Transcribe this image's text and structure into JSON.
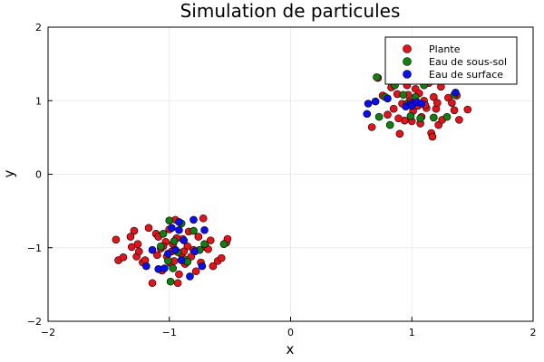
{
  "chart_data": {
    "type": "scatter",
    "title": "Simulation de particules",
    "xlabel": "x",
    "ylabel": "y",
    "xlim": [
      -2,
      2
    ],
    "ylim": [
      -2,
      2
    ],
    "xticks": [
      -2,
      -1,
      0,
      1,
      2
    ],
    "yticks": [
      -2,
      -1,
      0,
      1,
      2
    ],
    "grid": true,
    "legend_position": "top-right",
    "series": [
      {
        "name": "Plante",
        "color": "#e8111a",
        "points": [
          [
            -1.44,
            -0.89
          ],
          [
            -1.42,
            -1.17
          ],
          [
            -1.38,
            -1.13
          ],
          [
            -1.32,
            -0.85
          ],
          [
            -1.31,
            -0.99
          ],
          [
            -1.29,
            -0.77
          ],
          [
            -1.27,
            -1.12
          ],
          [
            -1.26,
            -0.95
          ],
          [
            -1.22,
            -1.2
          ],
          [
            -1.2,
            -1.17
          ],
          [
            -1.17,
            -0.73
          ],
          [
            -1.14,
            -1.48
          ],
          [
            -1.11,
            -0.81
          ],
          [
            -1.09,
            -0.85
          ],
          [
            -1.07,
            -1.01
          ],
          [
            -1.06,
            -1.31
          ],
          [
            -1.03,
            -0.92
          ],
          [
            -1.02,
            -1.12
          ],
          [
            -1.0,
            -0.75
          ],
          [
            -0.99,
            -1.21
          ],
          [
            -0.98,
            -1.05
          ],
          [
            -0.96,
            -1.18
          ],
          [
            -0.95,
            -0.62
          ],
          [
            -0.93,
            -1.48
          ],
          [
            -0.92,
            -1.36
          ],
          [
            -0.9,
            -1.09
          ],
          [
            -0.89,
            -0.88
          ],
          [
            -0.87,
            -1.22
          ],
          [
            -0.85,
            -0.98
          ],
          [
            -0.84,
            -0.78
          ],
          [
            -0.82,
            -1.12
          ],
          [
            -0.8,
            -1.03
          ],
          [
            -0.78,
            -1.32
          ],
          [
            -0.76,
            -0.85
          ],
          [
            -0.74,
            -1.2
          ],
          [
            -0.72,
            -0.6
          ],
          [
            -0.7,
            -0.99
          ],
          [
            -0.68,
            -1.02
          ],
          [
            -0.66,
            -0.9
          ],
          [
            -0.64,
            -1.25
          ],
          [
            -0.6,
            -1.18
          ],
          [
            -0.57,
            -1.14
          ],
          [
            -0.53,
            -0.93
          ],
          [
            -0.52,
            -0.88
          ],
          [
            -1.1,
            -1.1
          ],
          [
            -0.97,
            -0.95
          ],
          [
            -0.88,
            -1.05
          ],
          [
            -1.05,
            -0.98
          ],
          [
            -1.25,
            -1.05
          ],
          [
            -0.94,
            -0.87
          ],
          [
            0.67,
            0.64
          ],
          [
            0.72,
            1.31
          ],
          [
            0.76,
            1.07
          ],
          [
            0.8,
            0.81
          ],
          [
            0.83,
            1.18
          ],
          [
            0.85,
            0.89
          ],
          [
            0.88,
            1.09
          ],
          [
            0.9,
            0.55
          ],
          [
            0.92,
            0.96
          ],
          [
            0.94,
            0.73
          ],
          [
            0.96,
            1.21
          ],
          [
            0.98,
            0.99
          ],
          [
            1.0,
            0.72
          ],
          [
            1.01,
            0.86
          ],
          [
            1.03,
            1.16
          ],
          [
            1.04,
            1.27
          ],
          [
            1.05,
            0.93
          ],
          [
            1.07,
            0.69
          ],
          [
            1.08,
            0.78
          ],
          [
            1.1,
            1.0
          ],
          [
            1.12,
            0.9
          ],
          [
            1.14,
            1.24
          ],
          [
            1.16,
            0.56
          ],
          [
            1.17,
            0.51
          ],
          [
            1.18,
            1.05
          ],
          [
            1.2,
            0.89
          ],
          [
            1.22,
            0.67
          ],
          [
            1.24,
            1.19
          ],
          [
            1.25,
            0.74
          ],
          [
            1.3,
            1.04
          ],
          [
            1.33,
            0.97
          ],
          [
            1.35,
            0.87
          ],
          [
            1.37,
            1.07
          ],
          [
            1.39,
            0.74
          ],
          [
            1.46,
            0.88
          ],
          [
            1.11,
            0.94
          ],
          [
            0.97,
            1.08
          ],
          [
            1.06,
            1.1
          ],
          [
            1.21,
            0.97
          ],
          [
            0.89,
            0.76
          ]
        ]
      },
      {
        "name": "Eau de sous-sol",
        "color": "#0f800f",
        "points": [
          [
            -1.07,
            -0.98
          ],
          [
            -1.05,
            -0.81
          ],
          [
            -1.0,
            -0.63
          ],
          [
            -0.99,
            -1.46
          ],
          [
            -0.97,
            -1.28
          ],
          [
            -0.96,
            -0.91
          ],
          [
            -0.93,
            -1.06
          ],
          [
            -0.9,
            -0.67
          ],
          [
            -0.87,
            -1.16
          ],
          [
            -0.85,
            -1.19
          ],
          [
            -0.8,
            -0.77
          ],
          [
            -0.75,
            -1.03
          ],
          [
            -0.71,
            -0.95
          ],
          [
            -0.55,
            -0.95
          ],
          [
            -1.01,
            -1.18
          ],
          [
            0.71,
            1.32
          ],
          [
            0.73,
            0.78
          ],
          [
            0.78,
            1.05
          ],
          [
            0.82,
            0.67
          ],
          [
            0.86,
            1.21
          ],
          [
            0.93,
            1.08
          ],
          [
            0.99,
            0.79
          ],
          [
            1.03,
            1.05
          ],
          [
            1.07,
            0.76
          ],
          [
            1.1,
            1.21
          ],
          [
            1.18,
            0.77
          ],
          [
            1.29,
            0.78
          ],
          [
            1.35,
            1.08
          ],
          [
            0.96,
            0.95
          ]
        ]
      },
      {
        "name": "Eau de surface",
        "color": "#0c0cf2",
        "points": [
          [
            -1.19,
            -1.25
          ],
          [
            -1.14,
            -1.03
          ],
          [
            -1.09,
            -1.29
          ],
          [
            -1.04,
            -1.28
          ],
          [
            -1.01,
            -1.08
          ],
          [
            -0.98,
            -0.73
          ],
          [
            -0.95,
            -1.03
          ],
          [
            -0.92,
            -0.76
          ],
          [
            -0.92,
            -0.65
          ],
          [
            -0.9,
            -1.17
          ],
          [
            -0.88,
            -0.9
          ],
          [
            -0.83,
            -1.39
          ],
          [
            -0.8,
            -0.62
          ],
          [
            -0.79,
            -1.05
          ],
          [
            -0.73,
            -1.25
          ],
          [
            -0.71,
            -0.76
          ],
          [
            0.63,
            0.82
          ],
          [
            0.64,
            0.96
          ],
          [
            0.7,
            0.99
          ],
          [
            0.8,
            1.03
          ],
          [
            0.95,
            0.92
          ],
          [
            0.99,
            0.96
          ],
          [
            1.0,
            0.93
          ],
          [
            1.04,
            0.98
          ],
          [
            1.08,
            0.96
          ],
          [
            1.36,
            1.11
          ]
        ]
      }
    ]
  }
}
